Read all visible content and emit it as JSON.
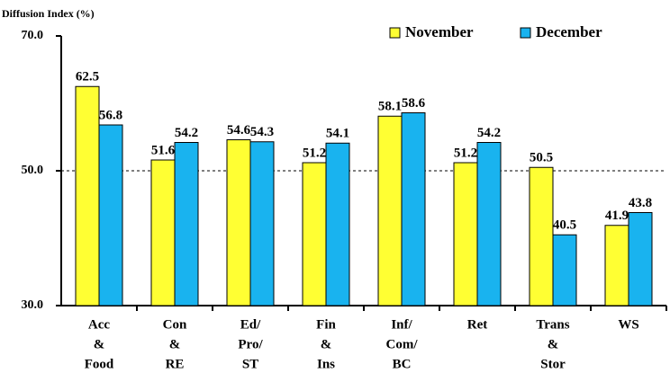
{
  "chart_data": {
    "type": "bar",
    "y_axis_label": "Diffusion Index (%)",
    "categories": [
      [
        "Acc",
        "&",
        "Food"
      ],
      [
        "Con",
        "&",
        "RE"
      ],
      [
        "Ed/",
        "Pro/",
        "ST"
      ],
      [
        "Fin",
        "&",
        "Ins"
      ],
      [
        "Inf/",
        "Com/",
        "BC"
      ],
      [
        "Ret"
      ],
      [
        "Trans",
        "&",
        "Stor"
      ],
      [
        "WS"
      ]
    ],
    "series": [
      {
        "name": "November",
        "color": "#ffff33",
        "values": [
          62.5,
          51.6,
          54.6,
          51.2,
          58.1,
          51.2,
          50.5,
          41.9
        ]
      },
      {
        "name": "December",
        "color": "#19b3ef",
        "values": [
          56.8,
          54.2,
          54.3,
          54.1,
          58.6,
          54.2,
          40.5,
          43.8
        ]
      }
    ],
    "ylim": [
      30,
      70
    ],
    "yticks": [
      {
        "value": 30,
        "label": "30.0"
      },
      {
        "value": 50,
        "label": "50.0"
      },
      {
        "value": 70,
        "label": "70.0"
      }
    ],
    "reference_line": 50,
    "legend": "top-right"
  }
}
